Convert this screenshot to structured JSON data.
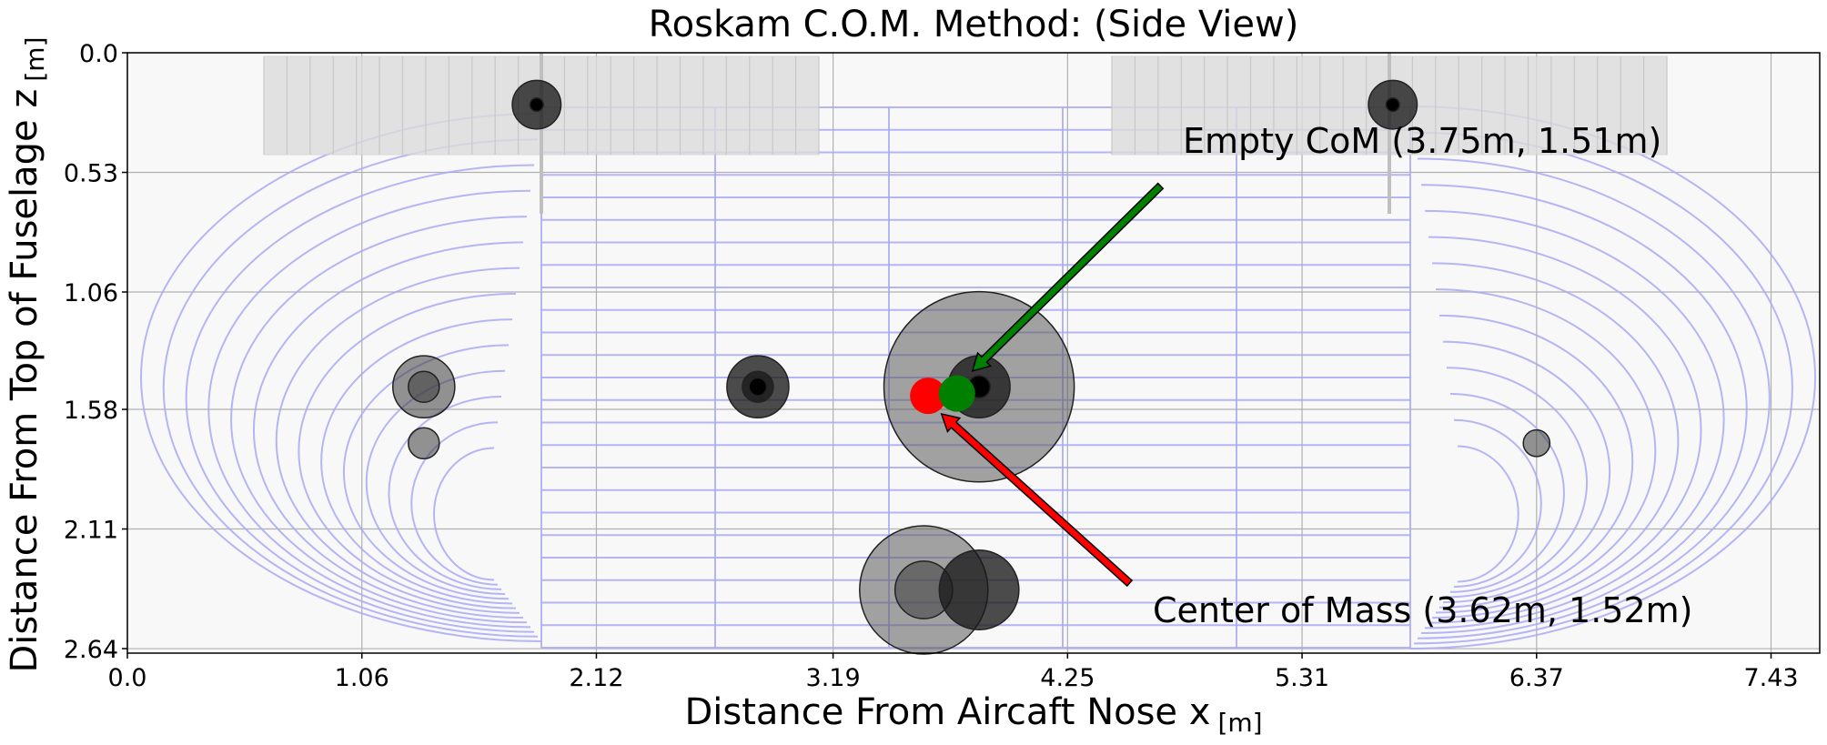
{
  "chart_data": {
    "type": "scatter",
    "title": "Roskam C.O.M. Method: (Side View)",
    "xlabel": "Distance From Aircaft Nose x",
    "xlabel_unit": "[m]",
    "ylabel": "Distance From Top of Fuselage z",
    "ylabel_unit": "[m]",
    "xlim": [
      0.0,
      7.65
    ],
    "ylim": [
      2.66,
      0.0
    ],
    "y_inverted": true,
    "grid": true,
    "xticks": [
      "0.0",
      "1.06",
      "2.12",
      "3.19",
      "4.25",
      "5.31",
      "6.37",
      "7.43"
    ],
    "yticks": [
      "0.0",
      "0.53",
      "1.06",
      "1.58",
      "2.11",
      "2.64"
    ],
    "center_of_mass": {
      "x": 3.62,
      "y": 1.52,
      "color": "#ff0000",
      "label": "Center of Mass (3.62m, 1.52m)"
    },
    "empty_center_of_mass": {
      "x": 3.75,
      "y": 1.51,
      "color": "#008000",
      "label": "Empty CoM (3.75m, 1.51m)"
    },
    "components": [
      {
        "x": 1.85,
        "y": 0.23,
        "r": 0.11,
        "shade": "dark"
      },
      {
        "x": 1.85,
        "y": 0.23,
        "r": 0.03,
        "shade": "core"
      },
      {
        "x": 5.72,
        "y": 0.23,
        "r": 0.11,
        "shade": "dark"
      },
      {
        "x": 5.72,
        "y": 0.23,
        "r": 0.03,
        "shade": "core"
      },
      {
        "x": 1.34,
        "y": 1.48,
        "r": 0.14,
        "shade": "mid"
      },
      {
        "x": 1.34,
        "y": 1.48,
        "r": 0.07,
        "shade": "mid"
      },
      {
        "x": 1.34,
        "y": 1.73,
        "r": 0.07,
        "shade": "mid"
      },
      {
        "x": 2.85,
        "y": 1.48,
        "r": 0.14,
        "shade": "dark"
      },
      {
        "x": 2.85,
        "y": 1.48,
        "r": 0.07,
        "shade": "dark"
      },
      {
        "x": 2.85,
        "y": 1.48,
        "r": 0.04,
        "shade": "core"
      },
      {
        "x": 3.85,
        "y": 1.48,
        "r": 0.43,
        "shade": "light"
      },
      {
        "x": 3.85,
        "y": 1.48,
        "r": 0.14,
        "shade": "dark"
      },
      {
        "x": 3.85,
        "y": 1.48,
        "r": 0.05,
        "shade": "core"
      },
      {
        "x": 3.6,
        "y": 2.38,
        "r": 0.29,
        "shade": "light"
      },
      {
        "x": 3.6,
        "y": 2.38,
        "r": 0.13,
        "shade": "mid"
      },
      {
        "x": 3.85,
        "y": 2.38,
        "r": 0.18,
        "shade": "dark"
      },
      {
        "x": 6.37,
        "y": 1.73,
        "r": 0.06,
        "shade": "mid"
      }
    ],
    "arrows": [
      {
        "name": "arrow-empty-com",
        "from": [
          4.67,
          0.59
        ],
        "to": [
          3.82,
          1.41
        ],
        "color": "#008000"
      },
      {
        "name": "arrow-com",
        "from": [
          4.53,
          2.35
        ],
        "to": [
          3.68,
          1.6
        ],
        "color": "#ff0000"
      }
    ]
  }
}
